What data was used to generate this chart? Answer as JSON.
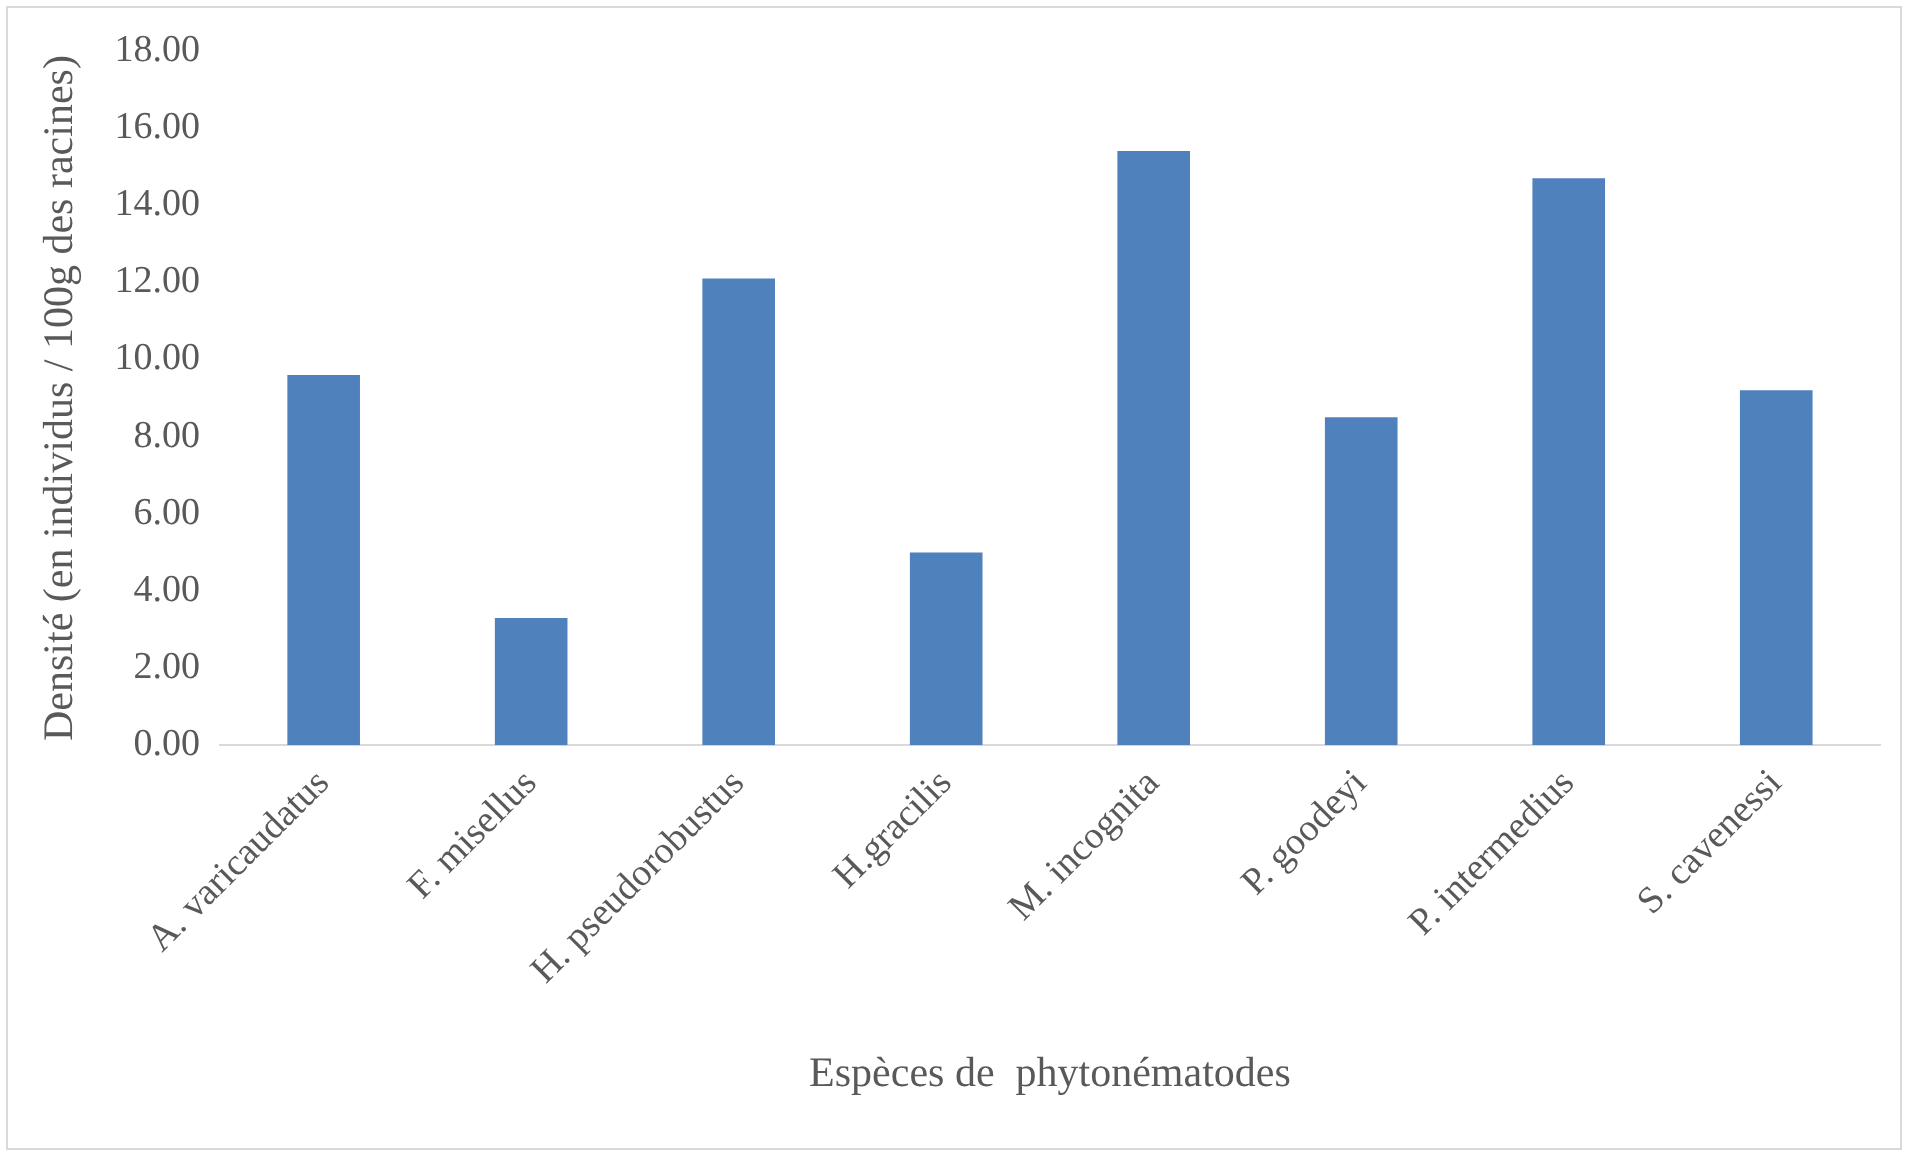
{
  "chart_data": {
    "type": "bar",
    "xlabel": "Espèces de  phytonématodes",
    "ylabel": "Densité (en individus / 100g des racines)",
    "categories": [
      "A. varicaudatus",
      "F. misellus",
      "H. pseudorobustus",
      "H.gracilis",
      "M. incognita",
      "P. goodeyi",
      "P. intermedius",
      "S. cavenessi"
    ],
    "values": [
      9.6,
      3.3,
      12.1,
      5.0,
      15.4,
      8.5,
      14.7,
      9.2
    ],
    "color": "#4f81bd",
    "ylim": [
      0,
      18
    ],
    "yticks": [
      {
        "value": 0,
        "label": "0.00"
      },
      {
        "value": 2,
        "label": "2.00"
      },
      {
        "value": 4,
        "label": "4.00"
      },
      {
        "value": 6,
        "label": "6.00"
      },
      {
        "value": 8,
        "label": "8.00"
      },
      {
        "value": 10,
        "label": "10.00"
      },
      {
        "value": 12,
        "label": "12.00"
      },
      {
        "value": 14,
        "label": "14.00"
      },
      {
        "value": 16,
        "label": "16.00"
      },
      {
        "value": 18,
        "label": "18.00"
      }
    ],
    "grid": false,
    "legend": false
  }
}
